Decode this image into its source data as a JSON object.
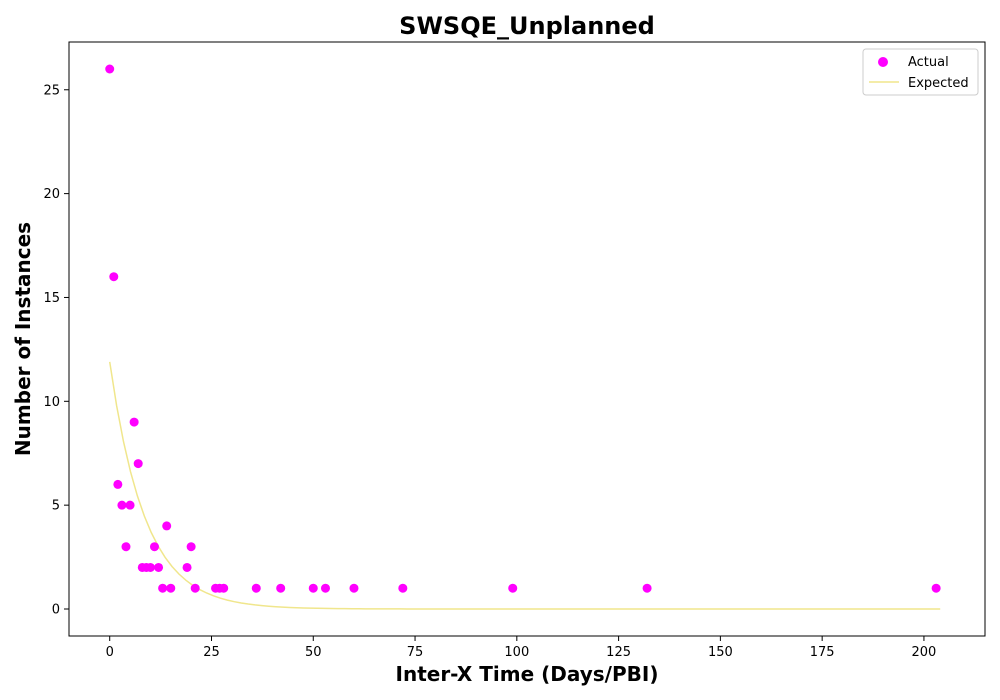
{
  "chart_data": {
    "type": "scatter",
    "title": "SWSQE_Unplanned",
    "xlabel": "Inter-X Time (Days/PBI)",
    "ylabel": "Number of Instances",
    "xlim": [
      -10,
      215
    ],
    "ylim": [
      -1.3,
      27.3
    ],
    "xticks": [
      0,
      25,
      50,
      75,
      100,
      125,
      150,
      175,
      200
    ],
    "yticks": [
      0,
      5,
      10,
      15,
      20,
      25
    ],
    "grid": false,
    "legend_position": "top-right",
    "series": [
      {
        "name": "Actual",
        "kind": "scatter",
        "color": "#ff00ff",
        "points": [
          [
            0,
            26
          ],
          [
            1,
            16
          ],
          [
            2,
            6
          ],
          [
            3,
            5
          ],
          [
            4,
            3
          ],
          [
            5,
            5
          ],
          [
            6,
            9
          ],
          [
            7,
            7
          ],
          [
            8,
            2
          ],
          [
            9,
            2
          ],
          [
            10,
            2
          ],
          [
            11,
            3
          ],
          [
            12,
            2
          ],
          [
            13,
            1
          ],
          [
            14,
            4
          ],
          [
            15,
            1
          ],
          [
            19,
            2
          ],
          [
            20,
            3
          ],
          [
            21,
            1
          ],
          [
            26,
            1
          ],
          [
            27,
            1
          ],
          [
            28,
            1
          ],
          [
            36,
            1
          ],
          [
            42,
            1
          ],
          [
            50,
            1
          ],
          [
            53,
            1
          ],
          [
            60,
            1
          ],
          [
            72,
            1
          ],
          [
            99,
            1
          ],
          [
            132,
            1
          ],
          [
            203,
            1
          ]
        ]
      },
      {
        "name": "Expected",
        "kind": "line",
        "color": "#f0e68c",
        "model": "exponential",
        "amplitude": 11.9,
        "rate": 0.115,
        "x_range": [
          0,
          204
        ]
      }
    ]
  }
}
